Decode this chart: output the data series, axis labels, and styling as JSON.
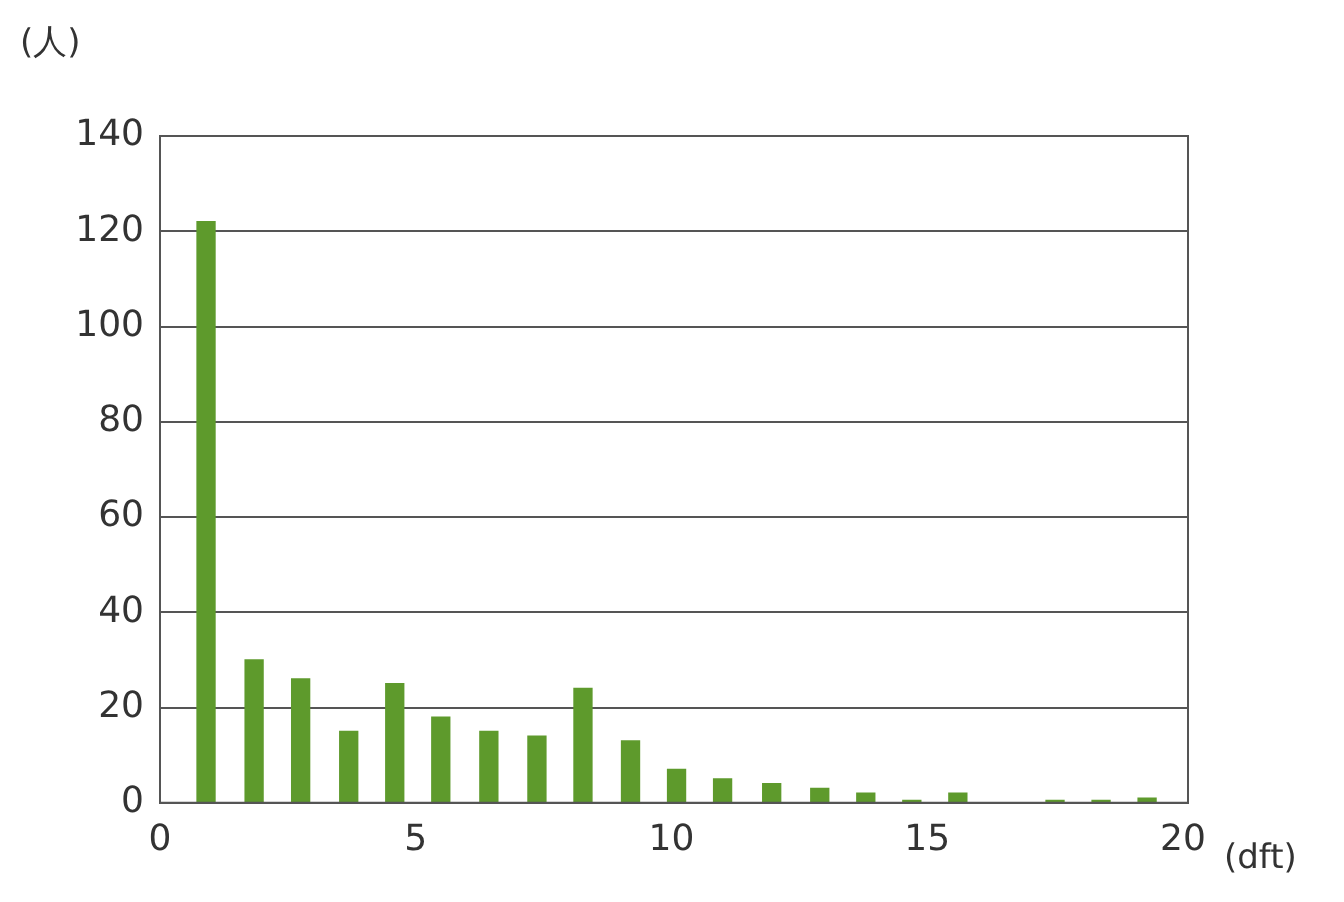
{
  "chart_data": {
    "type": "bar",
    "xlabel": "(dft)",
    "ylabel": "(人)",
    "x": [
      0.9,
      1.84,
      2.75,
      3.69,
      4.59,
      5.49,
      6.43,
      7.37,
      8.27,
      9.2,
      10.1,
      11.0,
      11.96,
      12.9,
      13.8,
      14.7,
      15.6,
      16.5,
      17.5,
      18.4,
      19.3
    ],
    "values": [
      122,
      30,
      26,
      15,
      25,
      18,
      15,
      14,
      24,
      13,
      7,
      5,
      4,
      3,
      2,
      0.5,
      2,
      null,
      0.5,
      0.5,
      1
    ],
    "color": "#5e9a2c",
    "xlim": [
      0,
      20.1
    ],
    "xticks": [
      0,
      5,
      10,
      15,
      20
    ],
    "ylim": [
      0,
      140
    ],
    "yticks": [
      0,
      20,
      40,
      60,
      80,
      100,
      120,
      140
    ],
    "grid": "y",
    "legend": false
  }
}
